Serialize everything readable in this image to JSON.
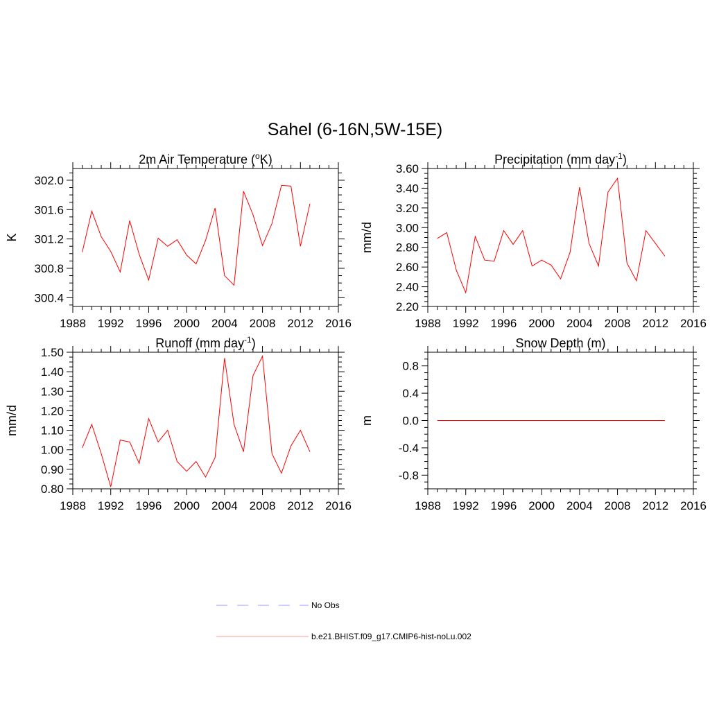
{
  "title": "Sahel (6-16N,5W-15E)",
  "colors": {
    "series": "#ff0000",
    "obs": "#9999ff",
    "frame": "#000000"
  },
  "legend": [
    {
      "label": "No Obs",
      "style": "dashed",
      "color": "#9999ff"
    },
    {
      "label": "b.e21.BHIST.f09_g17.CMIP6-hist-noLu.002",
      "style": "solid",
      "color": "#ff9999"
    }
  ],
  "chart_data": [
    {
      "type": "line",
      "title": "2m Air Temperature (",
      "title_sup": "o",
      "title_after": "K)",
      "ylabel": "K",
      "xlim": [
        1988,
        2016
      ],
      "ylim": [
        300.28,
        302.16
      ],
      "xticks": [
        1988,
        1992,
        1996,
        2000,
        2004,
        2008,
        2012,
        2016
      ],
      "xticklabels": [
        "1988",
        "1992",
        "1996",
        "2000",
        "2004",
        "2008",
        "2012",
        "2016"
      ],
      "yticks": [
        300.4,
        300.8,
        301.2,
        301.6,
        302.0
      ],
      "yticklabels": [
        "300.4",
        "300.8",
        "301.2",
        "301.6",
        "302.0"
      ],
      "yminor": 0.1,
      "series": [
        {
          "x": [
            1989,
            1990,
            1991,
            1992,
            1993,
            1994,
            1995,
            1996,
            1997,
            1998,
            1999,
            2000,
            2001,
            2002,
            2003,
            2004,
            2005,
            2006,
            2007,
            2008,
            2009,
            2010,
            2011,
            2012,
            2013
          ],
          "values": [
            301.02,
            301.58,
            301.23,
            301.03,
            300.75,
            301.45,
            300.99,
            300.64,
            301.21,
            301.1,
            301.19,
            300.98,
            300.86,
            301.18,
            301.62,
            300.7,
            300.57,
            301.85,
            301.53,
            301.11,
            301.41,
            301.93,
            301.92,
            301.1,
            301.68
          ]
        }
      ]
    },
    {
      "type": "line",
      "title": "Precipitation (mm day",
      "title_sup": "-1",
      "title_after": ")",
      "ylabel": "mm/d",
      "xlim": [
        1988,
        2016
      ],
      "ylim": [
        2.2,
        3.6
      ],
      "xticks": [
        1988,
        1992,
        1996,
        2000,
        2004,
        2008,
        2012,
        2016
      ],
      "xticklabels": [
        "1988",
        "1992",
        "1996",
        "2000",
        "2004",
        "2008",
        "2012",
        "2016"
      ],
      "yticks": [
        2.2,
        2.4,
        2.6,
        2.8,
        3.0,
        3.2,
        3.4,
        3.6
      ],
      "yticklabels": [
        "2.20",
        "2.40",
        "2.60",
        "2.80",
        "3.00",
        "3.20",
        "3.40",
        "3.60"
      ],
      "yminor": 0.05,
      "series": [
        {
          "x": [
            1989,
            1990,
            1991,
            1992,
            1993,
            1994,
            1995,
            1996,
            1997,
            1998,
            1999,
            2000,
            2001,
            2002,
            2003,
            2004,
            2005,
            2006,
            2007,
            2008,
            2009,
            2010,
            2011,
            2012,
            2013
          ],
          "values": [
            2.89,
            2.95,
            2.57,
            2.34,
            2.91,
            2.67,
            2.66,
            2.97,
            2.83,
            2.97,
            2.61,
            2.67,
            2.62,
            2.48,
            2.75,
            3.41,
            2.84,
            2.61,
            3.36,
            3.5,
            2.64,
            2.46,
            2.97,
            2.84,
            2.71
          ]
        }
      ]
    },
    {
      "type": "line",
      "title": "Runoff (mm day",
      "title_sup": "-1",
      "title_after": ")",
      "ylabel": "mm/d",
      "xlim": [
        1988,
        2016
      ],
      "ylim": [
        0.8,
        1.5
      ],
      "xticks": [
        1988,
        1992,
        1996,
        2000,
        2004,
        2008,
        2012,
        2016
      ],
      "xticklabels": [
        "1988",
        "1992",
        "1996",
        "2000",
        "2004",
        "2008",
        "2012",
        "2016"
      ],
      "yticks": [
        0.8,
        0.9,
        1.0,
        1.1,
        1.2,
        1.3,
        1.4,
        1.5
      ],
      "yticklabels": [
        "0.80",
        "0.90",
        "1.00",
        "1.10",
        "1.20",
        "1.30",
        "1.40",
        "1.50"
      ],
      "yminor": 0.025,
      "series": [
        {
          "x": [
            1989,
            1990,
            1991,
            1992,
            1993,
            1994,
            1995,
            1996,
            1997,
            1998,
            1999,
            2000,
            2001,
            2002,
            2003,
            2004,
            2005,
            2006,
            2007,
            2008,
            2009,
            2010,
            2011,
            2012,
            2013
          ],
          "values": [
            1.01,
            1.13,
            0.98,
            0.81,
            1.05,
            1.04,
            0.93,
            1.16,
            1.04,
            1.1,
            0.94,
            0.89,
            0.94,
            0.86,
            0.96,
            1.47,
            1.13,
            0.99,
            1.38,
            1.48,
            0.98,
            0.88,
            1.02,
            1.1,
            0.99
          ]
        }
      ]
    },
    {
      "type": "line",
      "title": "Snow Depth (m)",
      "title_sup": "",
      "title_after": "",
      "ylabel": "m",
      "xlim": [
        1988,
        2016
      ],
      "ylim": [
        -1.0,
        1.0
      ],
      "xticks": [
        1988,
        1992,
        1996,
        2000,
        2004,
        2008,
        2012,
        2016
      ],
      "xticklabels": [
        "1988",
        "1992",
        "1996",
        "2000",
        "2004",
        "2008",
        "2012",
        "2016"
      ],
      "yticks": [
        -0.8,
        -0.4,
        0.0,
        0.4,
        0.8
      ],
      "yticklabels": [
        "-0.8",
        "-0.4",
        "0.0",
        "0.4",
        "0.8"
      ],
      "yminor": 0.1,
      "series": [
        {
          "x": [
            1989,
            2013
          ],
          "values": [
            0.0,
            0.0
          ]
        }
      ]
    }
  ]
}
